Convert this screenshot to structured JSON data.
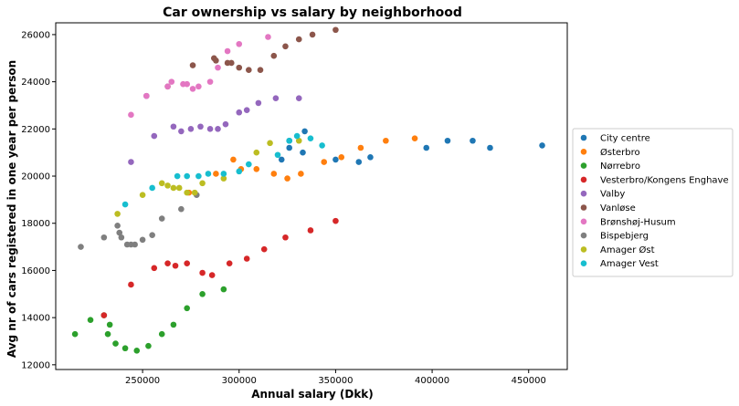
{
  "chart_data": {
    "type": "scatter",
    "title": "Car ownership vs salary by neighborhood",
    "xlabel": "Annual salary (Dkk)",
    "ylabel": "Avg nr of cars registered in one year per person",
    "xlim": [
      205000,
      470000
    ],
    "ylim": [
      11800,
      26500
    ],
    "xticks": [
      250000,
      300000,
      350000,
      400000,
      450000
    ],
    "yticks": [
      12000,
      14000,
      16000,
      18000,
      20000,
      22000,
      24000,
      26000
    ],
    "grid": false,
    "legend_position": "right",
    "series": [
      {
        "name": "City centre",
        "color": "#1f77b4",
        "points": [
          [
            322000,
            20700
          ],
          [
            326000,
            21200
          ],
          [
            333000,
            21000
          ],
          [
            334000,
            21900
          ],
          [
            350000,
            20700
          ],
          [
            362000,
            20600
          ],
          [
            368000,
            20800
          ],
          [
            397000,
            21200
          ],
          [
            408000,
            21500
          ],
          [
            421000,
            21500
          ],
          [
            430000,
            21200
          ],
          [
            457000,
            21300
          ],
          [
            326000,
            21500
          ]
        ]
      },
      {
        "name": "Østerbro",
        "color": "#ff7f0e",
        "points": [
          [
            274000,
            19300
          ],
          [
            288000,
            20100
          ],
          [
            297000,
            20700
          ],
          [
            301000,
            20300
          ],
          [
            309000,
            20300
          ],
          [
            318000,
            20100
          ],
          [
            325000,
            19900
          ],
          [
            332000,
            20100
          ],
          [
            344000,
            20600
          ],
          [
            353000,
            20800
          ],
          [
            363000,
            21200
          ],
          [
            376000,
            21500
          ],
          [
            391000,
            21600
          ]
        ]
      },
      {
        "name": "Nørrebro",
        "color": "#2ca02c",
        "points": [
          [
            215000,
            13300
          ],
          [
            223000,
            13900
          ],
          [
            230000,
            14100
          ],
          [
            232000,
            13300
          ],
          [
            233000,
            13700
          ],
          [
            236000,
            12900
          ],
          [
            241000,
            12700
          ],
          [
            247000,
            12600
          ],
          [
            253000,
            12800
          ],
          [
            260000,
            13300
          ],
          [
            266000,
            13700
          ],
          [
            273000,
            14400
          ],
          [
            281000,
            15000
          ],
          [
            292000,
            15200
          ]
        ]
      },
      {
        "name": "Vesterbro/Kongens Enghave",
        "color": "#d62728",
        "points": [
          [
            230000,
            14100
          ],
          [
            244000,
            15400
          ],
          [
            256000,
            16100
          ],
          [
            263000,
            16300
          ],
          [
            267000,
            16200
          ],
          [
            273000,
            16300
          ],
          [
            281000,
            15900
          ],
          [
            286000,
            15800
          ],
          [
            295000,
            16300
          ],
          [
            304000,
            16500
          ],
          [
            313000,
            16900
          ],
          [
            324000,
            17400
          ],
          [
            337000,
            17700
          ],
          [
            350000,
            18100
          ]
        ]
      },
      {
        "name": "Valby",
        "color": "#9467bd",
        "points": [
          [
            244000,
            20600
          ],
          [
            256000,
            21700
          ],
          [
            266000,
            22100
          ],
          [
            270000,
            21900
          ],
          [
            275000,
            22000
          ],
          [
            280000,
            22100
          ],
          [
            285000,
            22000
          ],
          [
            289000,
            22000
          ],
          [
            293000,
            22200
          ],
          [
            300000,
            22700
          ],
          [
            304000,
            22800
          ],
          [
            310000,
            23100
          ],
          [
            319000,
            23300
          ],
          [
            331000,
            23300
          ],
          [
            252000,
            23400
          ]
        ]
      },
      {
        "name": "Vanløse",
        "color": "#8c564b",
        "points": [
          [
            263000,
            23800
          ],
          [
            276000,
            24700
          ],
          [
            287000,
            25000
          ],
          [
            288000,
            24900
          ],
          [
            294000,
            24800
          ],
          [
            296000,
            24800
          ],
          [
            300000,
            24600
          ],
          [
            305000,
            24500
          ],
          [
            311000,
            24500
          ],
          [
            318000,
            25100
          ],
          [
            324000,
            25500
          ],
          [
            331000,
            25800
          ],
          [
            338000,
            26000
          ],
          [
            350000,
            26200
          ]
        ]
      },
      {
        "name": "Brønshøj-Husum",
        "color": "#e377c2",
        "points": [
          [
            244000,
            22600
          ],
          [
            252000,
            23400
          ],
          [
            263000,
            23800
          ],
          [
            265000,
            24000
          ],
          [
            271000,
            23900
          ],
          [
            273000,
            23900
          ],
          [
            276000,
            23700
          ],
          [
            279000,
            23800
          ],
          [
            285000,
            24000
          ],
          [
            289000,
            24600
          ],
          [
            294000,
            25300
          ],
          [
            300000,
            25600
          ],
          [
            315000,
            25900
          ]
        ]
      },
      {
        "name": "Bispebjerg",
        "color": "#7f7f7f",
        "points": [
          [
            218000,
            17000
          ],
          [
            230000,
            17400
          ],
          [
            237000,
            17900
          ],
          [
            238000,
            17600
          ],
          [
            239000,
            17400
          ],
          [
            242000,
            17100
          ],
          [
            244000,
            17100
          ],
          [
            246000,
            17100
          ],
          [
            250000,
            17300
          ],
          [
            255000,
            17500
          ],
          [
            260000,
            18200
          ],
          [
            270000,
            18600
          ],
          [
            278000,
            19200
          ]
        ]
      },
      {
        "name": "Amager Øst",
        "color": "#bcbd22",
        "points": [
          [
            237000,
            18400
          ],
          [
            250000,
            19200
          ],
          [
            260000,
            19700
          ],
          [
            263000,
            19600
          ],
          [
            266000,
            19500
          ],
          [
            269000,
            19500
          ],
          [
            273000,
            19300
          ],
          [
            277000,
            19300
          ],
          [
            281000,
            19700
          ],
          [
            292000,
            19900
          ],
          [
            309000,
            21000
          ],
          [
            316000,
            21400
          ],
          [
            331000,
            21500
          ]
        ]
      },
      {
        "name": "Amager Vest",
        "color": "#17becf",
        "points": [
          [
            241000,
            18800
          ],
          [
            255000,
            19500
          ],
          [
            268000,
            20000
          ],
          [
            273000,
            20000
          ],
          [
            279000,
            20000
          ],
          [
            284000,
            20100
          ],
          [
            292000,
            20100
          ],
          [
            300000,
            20200
          ],
          [
            305000,
            20500
          ],
          [
            320000,
            20900
          ],
          [
            326000,
            21500
          ],
          [
            330000,
            21700
          ],
          [
            337000,
            21600
          ],
          [
            343000,
            21300
          ]
        ]
      }
    ]
  }
}
